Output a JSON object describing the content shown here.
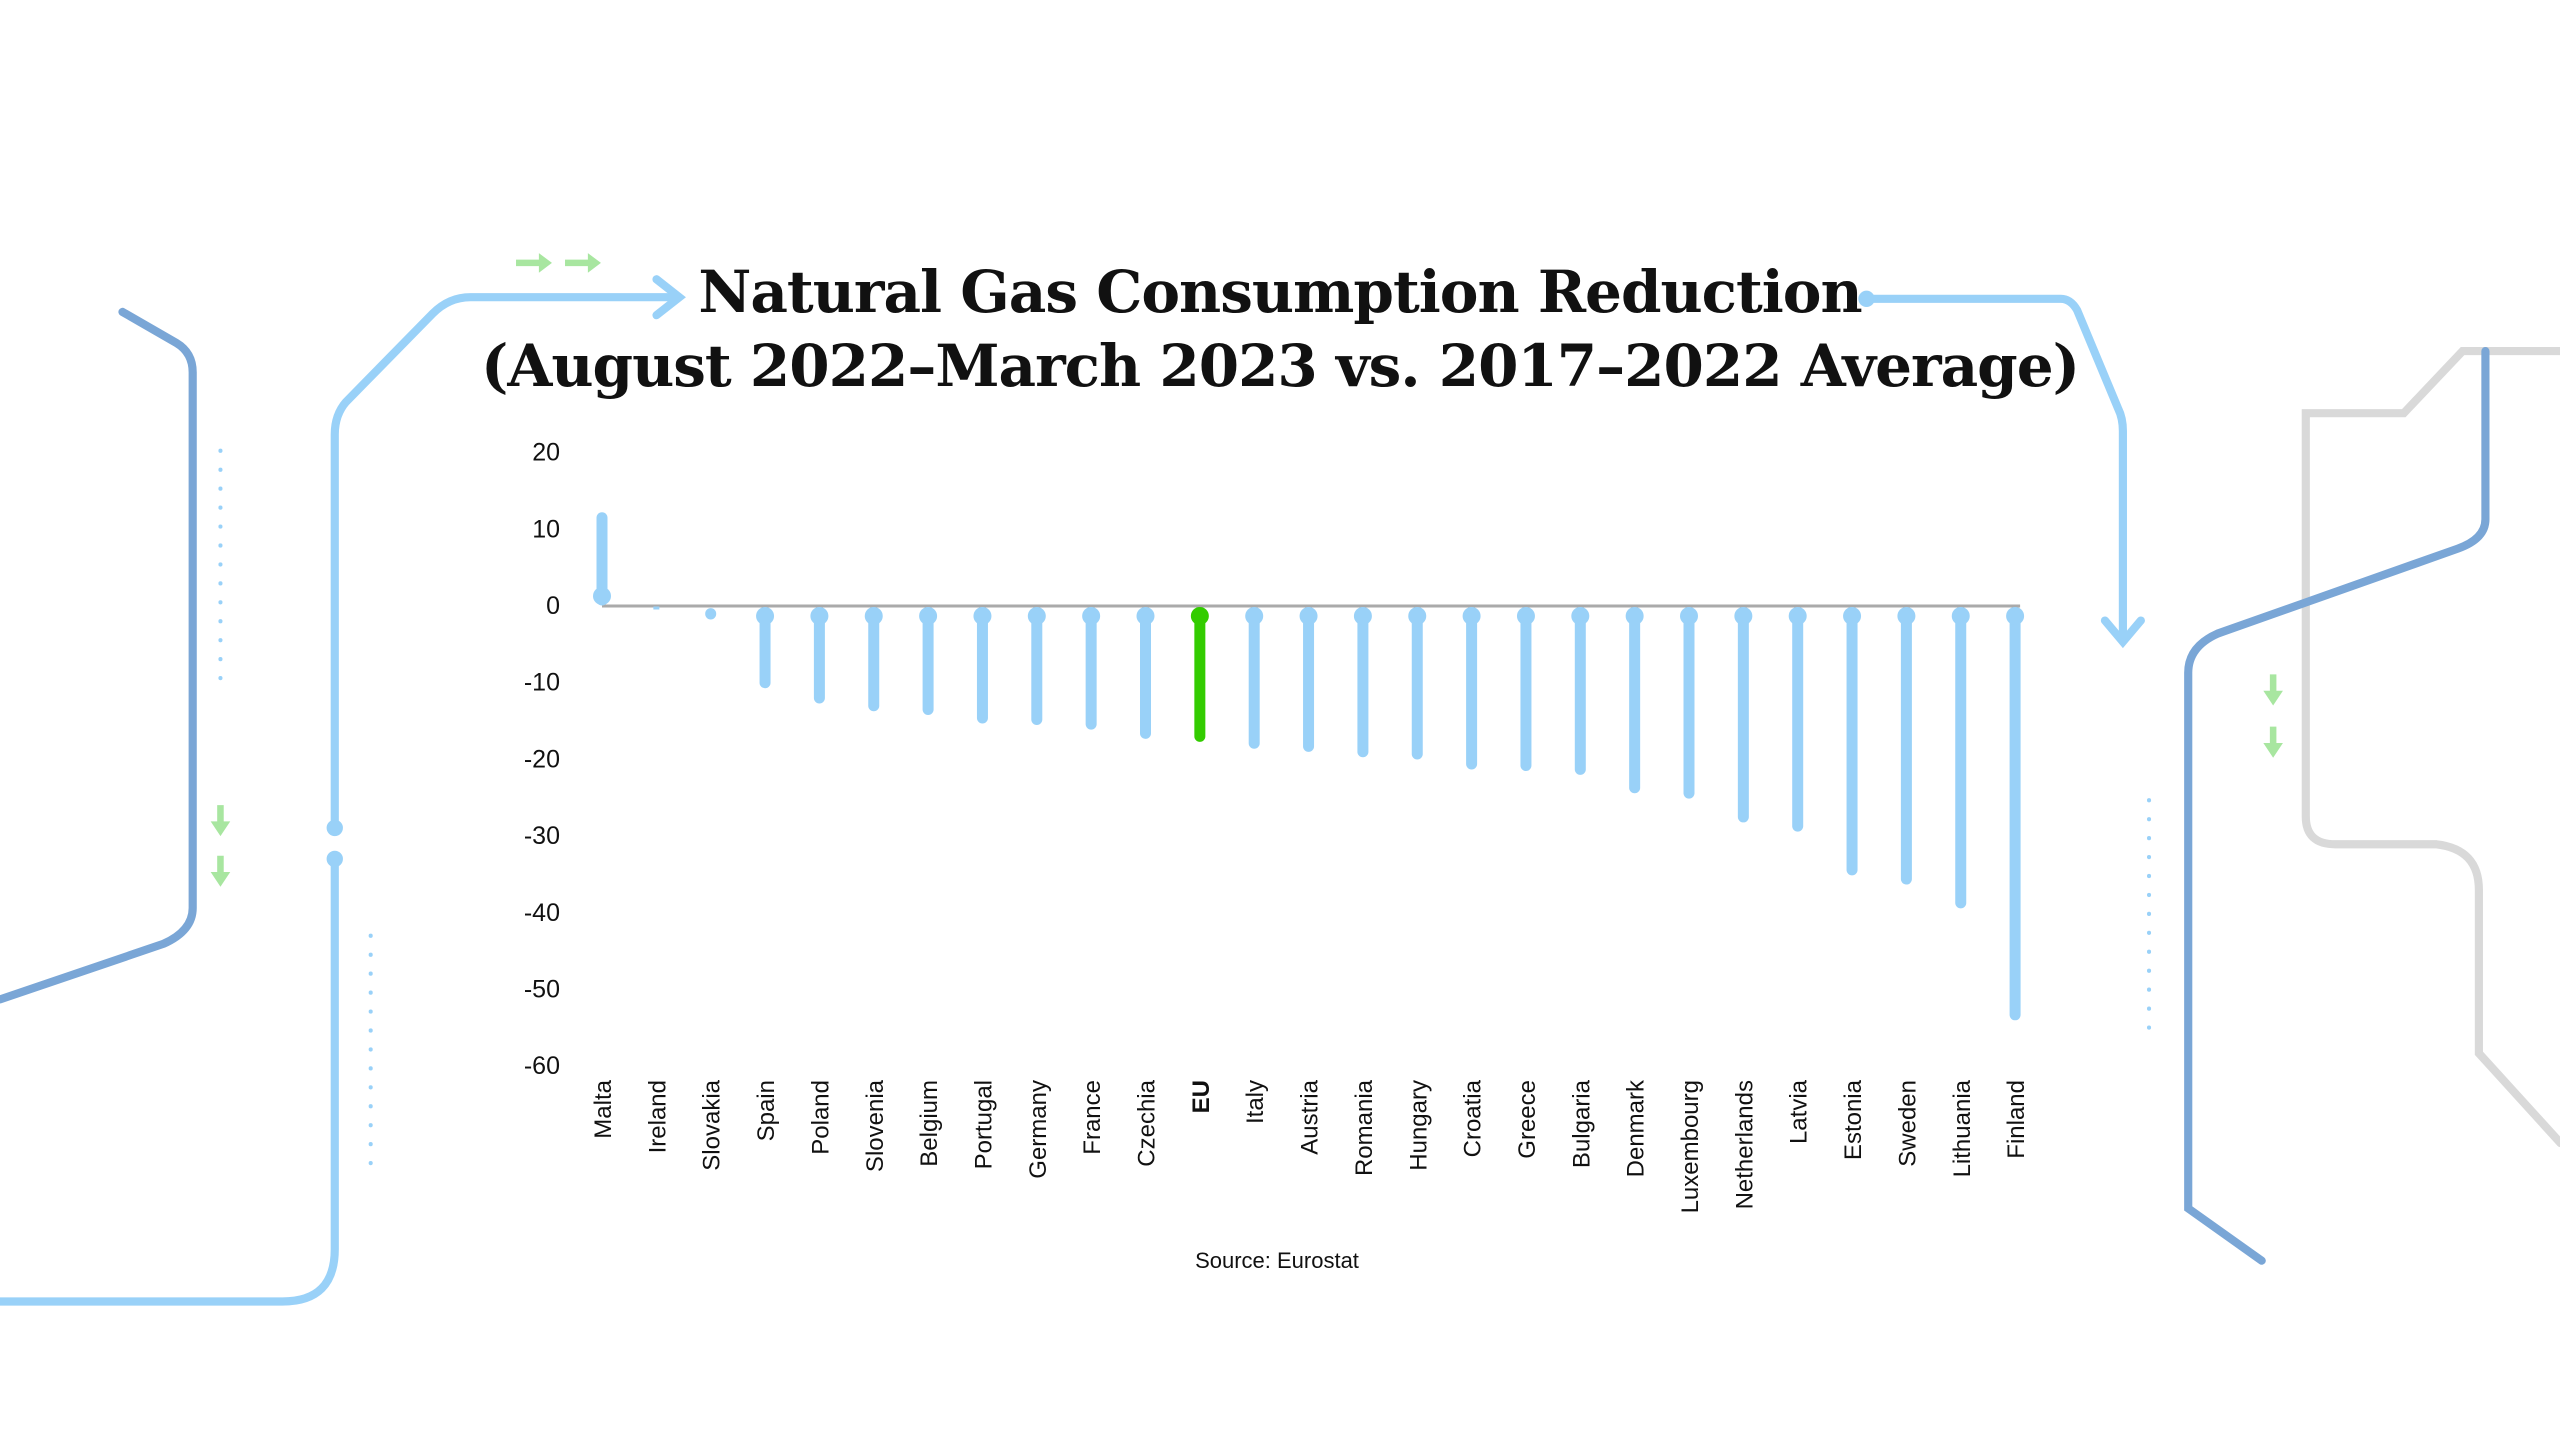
{
  "chart_data": {
    "type": "bar",
    "style": "lollipop",
    "title": "Natural Gas Consumption Reduction",
    "subtitle": "(August 2022–March 2023 vs. 2017–2022 Average)",
    "source": "Source: Eurostat",
    "ylim": [
      -60,
      20
    ],
    "yticks": [
      "20",
      "10",
      "0",
      "-10",
      "-20",
      "-30",
      "-40",
      "-50",
      "-60"
    ],
    "grid": false,
    "categories": [
      "Malta",
      "Ireland",
      "Slovakia",
      "Spain",
      "Poland",
      "Slovenia",
      "Belgium",
      "Portugal",
      "Germany",
      "France",
      "Czechia",
      "EU",
      "Italy",
      "Austria",
      "Romania",
      "Hungary",
      "Croatia",
      "Greece",
      "Bulgaria",
      "Denmark",
      "Luxembourg",
      "Netherlands",
      "Latvia",
      "Estonia",
      "Sweden",
      "Lithuania",
      "Finland"
    ],
    "values": [
      11.5,
      0,
      -1,
      -10,
      -12,
      -13,
      -13.5,
      -14.6,
      -14.8,
      -15.4,
      -16.6,
      -17,
      -17.9,
      -18.3,
      -19,
      -19.3,
      -20.6,
      -20.8,
      -21.3,
      -23.7,
      -24.4,
      -27.5,
      -28.7,
      -34.4,
      -35.6,
      -38.7,
      -53.3
    ],
    "highlight": "EU",
    "colors": {
      "bar": "#99d1f8",
      "highlight": "#33cc00",
      "zero_line": "#aaaaaa",
      "deco_light": "#99d1f8",
      "deco_dark": "#7aa6d6",
      "deco_gray": "#d9d9d9",
      "deco_arrow": "#a8e6a0"
    }
  }
}
